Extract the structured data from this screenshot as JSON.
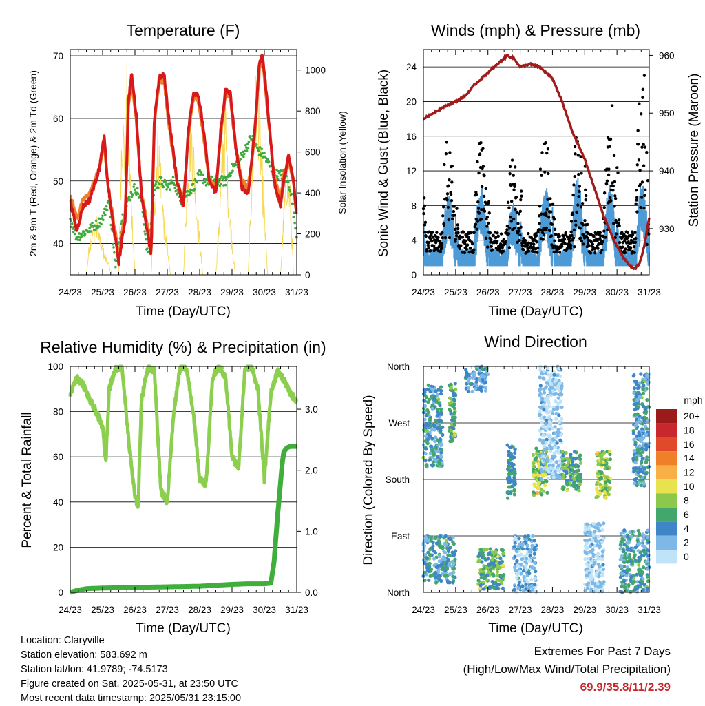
{
  "panels": {
    "temperature": {
      "title": "Temperature (F)",
      "ylabel_left": "2m & 9m T (Red, Orange) & 2m Td (Green)",
      "ylabel_right": "Solar Insolation (Yellow)",
      "xlabel": "Time (Day/UTC)"
    },
    "winds": {
      "title": "Winds (mph) & Pressure (mb)",
      "ylabel_left": "Sonic Wind & Gust (Blue, Black)",
      "ylabel_right": "Station Pressure (Maroon)",
      "xlabel": "Time (Day/UTC)"
    },
    "humidity": {
      "title": "Relative Humidity (%) & Precipitation (in)",
      "ylabel_left": "Percent & Total Rainfall",
      "xlabel": "Time (Day/UTC)"
    },
    "direction": {
      "title": "Wind Direction",
      "ylabel_left": "Direction (Colored By Speed)",
      "xlabel": "Time (Day/UTC)",
      "legend_title": "mph"
    }
  },
  "info": {
    "location": "Location: Claryville",
    "elevation": "Station elevation: 583.692 m",
    "latlon": "Station lat/lon: 41.9789; -74.5173",
    "created": "Figure created on Sat, 2025-05-31, at 23:50 UTC",
    "recent": "Most recent data timestamp: 2025/05/31 23:15:00"
  },
  "extremes": {
    "heading": "Extremes For Past 7 Days",
    "subheading": "(High/Low/Max Wind/Total Precipitation)",
    "values": "69.9/35.8/11/2.39"
  },
  "colors": {
    "temp2m": "#d7191c",
    "temp9m": "#f07f2a",
    "dewpoint": "#3daa3d",
    "solar": "#f6d64a",
    "wind": "#4c9ad6",
    "gust": "#000000",
    "pressure": "#a01b1b",
    "rh": "#8ccf4f",
    "precip": "#3fae3a"
  },
  "chart_data": [
    {
      "type": "line",
      "id": "temperature",
      "x_ticks": [
        "24/23",
        "25/23",
        "26/23",
        "27/23",
        "28/23",
        "29/23",
        "30/23",
        "31/23"
      ],
      "xlim_days": [
        0,
        7
      ],
      "ylim_left": [
        35,
        71
      ],
      "yticks_left": [
        40,
        50,
        60,
        70
      ],
      "ylim_right": [
        0,
        1100
      ],
      "yticks_right": [
        0,
        200,
        400,
        600,
        800,
        1000
      ],
      "series": [
        {
          "name": "2m T",
          "axis": "left",
          "x": [
            0,
            0.2,
            0.4,
            0.6,
            0.9,
            1.05,
            1.15,
            1.3,
            1.5,
            1.7,
            1.8,
            1.9,
            2.05,
            2.2,
            2.35,
            2.5,
            2.6,
            2.75,
            2.9,
            3.05,
            3.3,
            3.5,
            3.65,
            3.8,
            3.95,
            4.1,
            4.3,
            4.5,
            4.65,
            4.8,
            4.95,
            5.1,
            5.3,
            5.5,
            5.7,
            5.85,
            5.95,
            6.1,
            6.3,
            6.5,
            6.6,
            6.75,
            6.9,
            7.0
          ],
          "y": [
            47,
            42,
            46,
            47,
            52,
            57,
            50,
            44,
            37,
            44,
            63,
            67,
            60,
            48,
            43,
            38,
            60,
            66.5,
            67,
            60,
            50,
            46,
            58,
            64,
            64,
            59,
            50,
            48,
            58,
            64.5,
            64,
            56,
            49,
            48,
            58,
            69,
            70,
            62,
            50,
            46,
            50,
            54,
            50,
            44
          ]
        },
        {
          "name": "9m T",
          "axis": "left",
          "x": [
            0,
            0.2,
            0.4,
            0.6,
            0.9,
            1.05,
            1.15,
            1.3,
            1.5,
            1.7,
            1.8,
            1.9,
            2.05,
            2.2,
            2.35,
            2.5,
            2.6,
            2.75,
            2.9,
            3.05,
            3.3,
            3.5,
            3.65,
            3.8,
            3.95,
            4.1,
            4.3,
            4.5,
            4.65,
            4.8,
            4.95,
            5.1,
            5.3,
            5.5,
            5.7,
            5.85,
            5.95,
            6.1,
            6.3,
            6.5,
            6.6,
            6.75,
            6.9,
            7.0
          ],
          "y": [
            48,
            44,
            47,
            48,
            52,
            56,
            50,
            45,
            38,
            45,
            62,
            66,
            59,
            48,
            44,
            39,
            59,
            66,
            66,
            59,
            50,
            47,
            57,
            63,
            63,
            58,
            50,
            49,
            57,
            64,
            63,
            56,
            50,
            49,
            57,
            68,
            69,
            61,
            51,
            47,
            51,
            53,
            50,
            45
          ]
        },
        {
          "name": "2m Td",
          "axis": "left",
          "x": [
            0,
            0.2,
            0.5,
            0.8,
            1.0,
            1.2,
            1.4,
            1.6,
            1.8,
            2.0,
            2.2,
            2.4,
            2.6,
            2.8,
            3.0,
            3.2,
            3.4,
            3.6,
            3.8,
            4.0,
            4.2,
            4.4,
            4.6,
            4.8,
            5.0,
            5.2,
            5.4,
            5.6,
            5.8,
            6.0,
            6.2,
            6.4,
            6.6,
            6.8,
            7.0
          ],
          "y": [
            44,
            41,
            42,
            43,
            44,
            47,
            36,
            44,
            47,
            49,
            47,
            38,
            49,
            50,
            49,
            50,
            47,
            48,
            49,
            51,
            50,
            50,
            50,
            50,
            52,
            53,
            55,
            57,
            55,
            54,
            52,
            51,
            51,
            49,
            41
          ]
        },
        {
          "name": "Solar",
          "axis": "right",
          "x": [
            0.1,
            0.5,
            0.6,
            0.8,
            1.0,
            1.3,
            1.5,
            1.55,
            1.6,
            1.7,
            1.75,
            1.8,
            1.9,
            2.0,
            2.1,
            2.3,
            2.5,
            2.6,
            2.7,
            2.8,
            2.9,
            3.1,
            3.3,
            3.5,
            3.6,
            3.7,
            3.8,
            3.9,
            4.1,
            4.3,
            4.5,
            4.6,
            4.7,
            4.8,
            4.9,
            5.1,
            5.3,
            5.5,
            5.6,
            5.7,
            5.8,
            5.9,
            6.1,
            6.3,
            6.5,
            6.6,
            6.7,
            6.8,
            6.9
          ],
          "y": [
            0,
            0,
            200,
            300,
            150,
            0,
            0,
            500,
            900,
            700,
            1050,
            800,
            400,
            0,
            0,
            0,
            0,
            400,
            800,
            600,
            300,
            0,
            0,
            0,
            500,
            850,
            750,
            400,
            0,
            0,
            0,
            300,
            700,
            900,
            400,
            0,
            0,
            0,
            500,
            950,
            1080,
            700,
            0,
            0,
            0,
            350,
            600,
            450,
            0
          ]
        }
      ]
    },
    {
      "type": "scatter",
      "id": "winds",
      "x_ticks": [
        "24/23",
        "25/23",
        "26/23",
        "27/23",
        "28/23",
        "29/23",
        "30/23",
        "31/23"
      ],
      "xlim_days": [
        0,
        7
      ],
      "ylim_left": [
        0,
        26
      ],
      "yticks_left": [
        0,
        4,
        8,
        12,
        16,
        20,
        24
      ],
      "ylim_right": [
        922,
        961
      ],
      "yticks_right": [
        930,
        940,
        950,
        960
      ],
      "daily_peak_wind": [
        9,
        10,
        8,
        10,
        11,
        10,
        10
      ],
      "daily_peak_gust": [
        17,
        16,
        13,
        18,
        15,
        20,
        24
      ],
      "series": [
        {
          "name": "Station Pressure",
          "axis": "right",
          "x": [
            0,
            0.3,
            0.6,
            1.0,
            1.3,
            1.6,
            2.0,
            2.3,
            2.6,
            2.8,
            3.0,
            3.3,
            3.6,
            4.0,
            4.3,
            4.6,
            5.0,
            5.3,
            5.6,
            5.9,
            6.2,
            6.4,
            6.55,
            6.7,
            6.85,
            7.0
          ],
          "y": [
            949,
            950,
            951,
            952,
            953,
            955,
            957,
            958.5,
            960,
            959.5,
            958,
            958.5,
            958,
            956,
            952,
            947,
            942,
            937,
            932,
            928,
            925,
            923.5,
            923,
            924,
            927,
            932
          ]
        }
      ]
    },
    {
      "type": "line",
      "id": "humidity",
      "x_ticks": [
        "24/23",
        "25/23",
        "26/23",
        "27/23",
        "28/23",
        "29/23",
        "30/23",
        "31/23"
      ],
      "xlim_days": [
        0,
        7
      ],
      "ylim_left": [
        0,
        100
      ],
      "yticks_left": [
        0,
        20,
        40,
        60,
        80,
        100
      ],
      "ylim_right": [
        0,
        3.7
      ],
      "yticks_right": [
        "0.0",
        "1.0",
        "2.0",
        "3.0"
      ],
      "series": [
        {
          "name": "RH",
          "axis": "left",
          "x": [
            0,
            0.2,
            0.4,
            0.6,
            0.8,
            1.0,
            1.1,
            1.2,
            1.4,
            1.6,
            1.8,
            2.0,
            2.1,
            2.2,
            2.4,
            2.6,
            2.8,
            3.0,
            3.2,
            3.4,
            3.6,
            3.8,
            4.0,
            4.2,
            4.4,
            4.6,
            4.8,
            5.0,
            5.2,
            5.4,
            5.6,
            5.8,
            6.0,
            6.2,
            6.4,
            6.6,
            6.8,
            7.0
          ],
          "y": [
            88,
            95,
            92,
            85,
            80,
            73,
            58,
            90,
            99,
            100,
            68,
            42,
            38,
            85,
            100,
            98,
            45,
            40,
            80,
            100,
            99,
            80,
            50,
            48,
            95,
            100,
            95,
            60,
            55,
            99,
            100,
            90,
            50,
            88,
            98,
            94,
            88,
            85
          ]
        },
        {
          "name": "Total Rainfall",
          "axis": "right",
          "x": [
            0,
            0.2,
            0.5,
            1.0,
            2.0,
            3.0,
            4.0,
            5.0,
            5.5,
            6.0,
            6.2,
            6.3,
            6.4,
            6.5,
            6.55,
            6.6,
            6.7,
            6.8,
            7.0
          ],
          "y": [
            0,
            0.03,
            0.06,
            0.07,
            0.08,
            0.09,
            0.1,
            0.13,
            0.14,
            0.14,
            0.15,
            0.5,
            1.2,
            1.8,
            2.1,
            2.3,
            2.37,
            2.39,
            2.39
          ]
        }
      ]
    },
    {
      "type": "scatter",
      "id": "direction",
      "x_ticks": [
        "24/23",
        "25/23",
        "26/23",
        "27/23",
        "28/23",
        "29/23",
        "30/23",
        "31/23"
      ],
      "xlim_days": [
        0,
        7
      ],
      "y_ticks": [
        "North",
        "West",
        "South",
        "East",
        "North"
      ],
      "ylim_degrees": [
        360,
        0
      ],
      "legend": [
        {
          "label": "20+",
          "color": "#9b1a1a"
        },
        {
          "label": "18",
          "color": "#c8282d"
        },
        {
          "label": "16",
          "color": "#e04a2b"
        },
        {
          "label": "14",
          "color": "#f07f2a"
        },
        {
          "label": "12",
          "color": "#f8b046"
        },
        {
          "label": "10",
          "color": "#e9e24f"
        },
        {
          "label": "8",
          "color": "#8cc84c"
        },
        {
          "label": "6",
          "color": "#43a66a"
        },
        {
          "label": "4",
          "color": "#3f86c6"
        },
        {
          "label": "2",
          "color": "#7db8e6"
        },
        {
          "label": "0",
          "color": "#bfe3f7"
        }
      ],
      "clusters": [
        {
          "x": [
            0,
            0.6
          ],
          "dir": [
            200,
            330
          ],
          "speeds": [
            2,
            4,
            6
          ]
        },
        {
          "x": [
            0,
            1.0
          ],
          "dir": [
            15,
            90
          ],
          "speeds": [
            2,
            4,
            6
          ]
        },
        {
          "x": [
            0.8,
            1.0
          ],
          "dir": [
            240,
            335
          ],
          "speeds": [
            4,
            6,
            8
          ]
        },
        {
          "x": [
            1.7,
            2.5
          ],
          "dir": [
            5,
            70
          ],
          "speeds": [
            4,
            6,
            8
          ]
        },
        {
          "x": [
            1.3,
            2.0
          ],
          "dir": [
            320,
            360
          ],
          "speeds": [
            2,
            4
          ]
        },
        {
          "x": [
            2.6,
            2.85
          ],
          "dir": [
            150,
            235
          ],
          "speeds": [
            4,
            6
          ]
        },
        {
          "x": [
            2.8,
            3.5
          ],
          "dir": [
            0,
            90
          ],
          "speeds": [
            0,
            2,
            4
          ]
        },
        {
          "x": [
            3.4,
            3.85
          ],
          "dir": [
            155,
            230
          ],
          "speeds": [
            6,
            8,
            10
          ]
        },
        {
          "x": [
            3.6,
            4.3
          ],
          "dir": [
            180,
            360
          ],
          "speeds": [
            0,
            2
          ]
        },
        {
          "x": [
            4.3,
            4.9
          ],
          "dir": [
            160,
            225
          ],
          "speeds": [
            4,
            6,
            8
          ]
        },
        {
          "x": [
            5.35,
            5.8
          ],
          "dir": [
            150,
            225
          ],
          "speeds": [
            6,
            8,
            10
          ]
        },
        {
          "x": [
            5.0,
            5.6
          ],
          "dir": [
            0,
            110
          ],
          "speeds": [
            0,
            2
          ]
        },
        {
          "x": [
            6.1,
            7.0
          ],
          "dir": [
            0,
            100
          ],
          "speeds": [
            2,
            4,
            6
          ]
        },
        {
          "x": [
            6.5,
            7.0
          ],
          "dir": [
            170,
            350
          ],
          "speeds": [
            2,
            4,
            6
          ]
        }
      ]
    }
  ]
}
